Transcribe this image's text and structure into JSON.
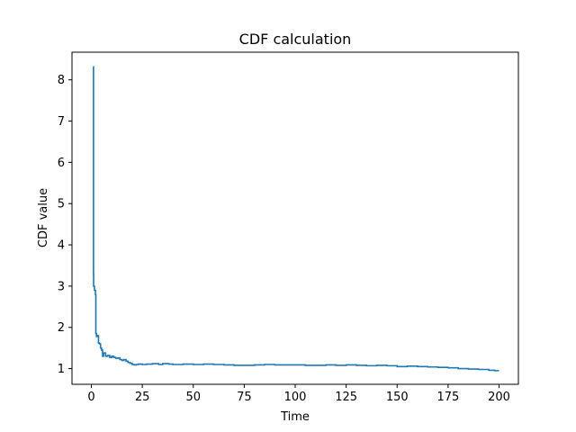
{
  "chart_data": {
    "type": "line",
    "title": "CDF calculation",
    "xlabel": "Time",
    "ylabel": "CDF value",
    "xlim": [
      -9.5,
      209.5
    ],
    "ylim": [
      0.62,
      8.67
    ],
    "xticks": [
      0,
      25,
      50,
      75,
      100,
      125,
      150,
      175,
      200
    ],
    "yticks": [
      1,
      2,
      3,
      4,
      5,
      6,
      7,
      8
    ],
    "grid": false,
    "line_color": "#1f77b4",
    "series": [
      {
        "x": [
          1,
          1.05,
          1.1,
          1.5,
          2,
          2.2,
          2.5,
          3,
          3.5,
          4,
          4.5,
          5,
          5.5,
          6,
          7,
          8,
          9,
          10,
          11,
          12,
          13,
          14,
          15,
          16,
          17,
          18,
          19,
          20,
          21,
          22,
          23,
          25,
          27,
          30,
          33,
          35,
          38,
          40,
          45,
          50,
          55,
          60,
          65,
          70,
          75,
          80,
          85,
          90,
          95,
          100,
          105,
          110,
          115,
          120,
          125,
          130,
          135,
          140,
          145,
          150,
          155,
          160,
          165,
          170,
          175,
          180,
          185,
          190,
          195,
          198,
          200
        ],
        "y": [
          8.32,
          3.3,
          3.0,
          2.9,
          2.8,
          1.85,
          1.78,
          1.8,
          1.62,
          1.6,
          1.5,
          1.45,
          1.3,
          1.38,
          1.3,
          1.32,
          1.27,
          1.3,
          1.27,
          1.25,
          1.26,
          1.22,
          1.2,
          1.22,
          1.18,
          1.15,
          1.13,
          1.1,
          1.09,
          1.1,
          1.11,
          1.1,
          1.11,
          1.12,
          1.1,
          1.12,
          1.11,
          1.1,
          1.11,
          1.1,
          1.11,
          1.1,
          1.09,
          1.08,
          1.08,
          1.09,
          1.1,
          1.09,
          1.09,
          1.09,
          1.08,
          1.08,
          1.09,
          1.08,
          1.09,
          1.08,
          1.07,
          1.08,
          1.07,
          1.05,
          1.06,
          1.05,
          1.04,
          1.03,
          1.02,
          1.0,
          0.99,
          0.98,
          0.96,
          0.95,
          0.95
        ]
      }
    ]
  }
}
